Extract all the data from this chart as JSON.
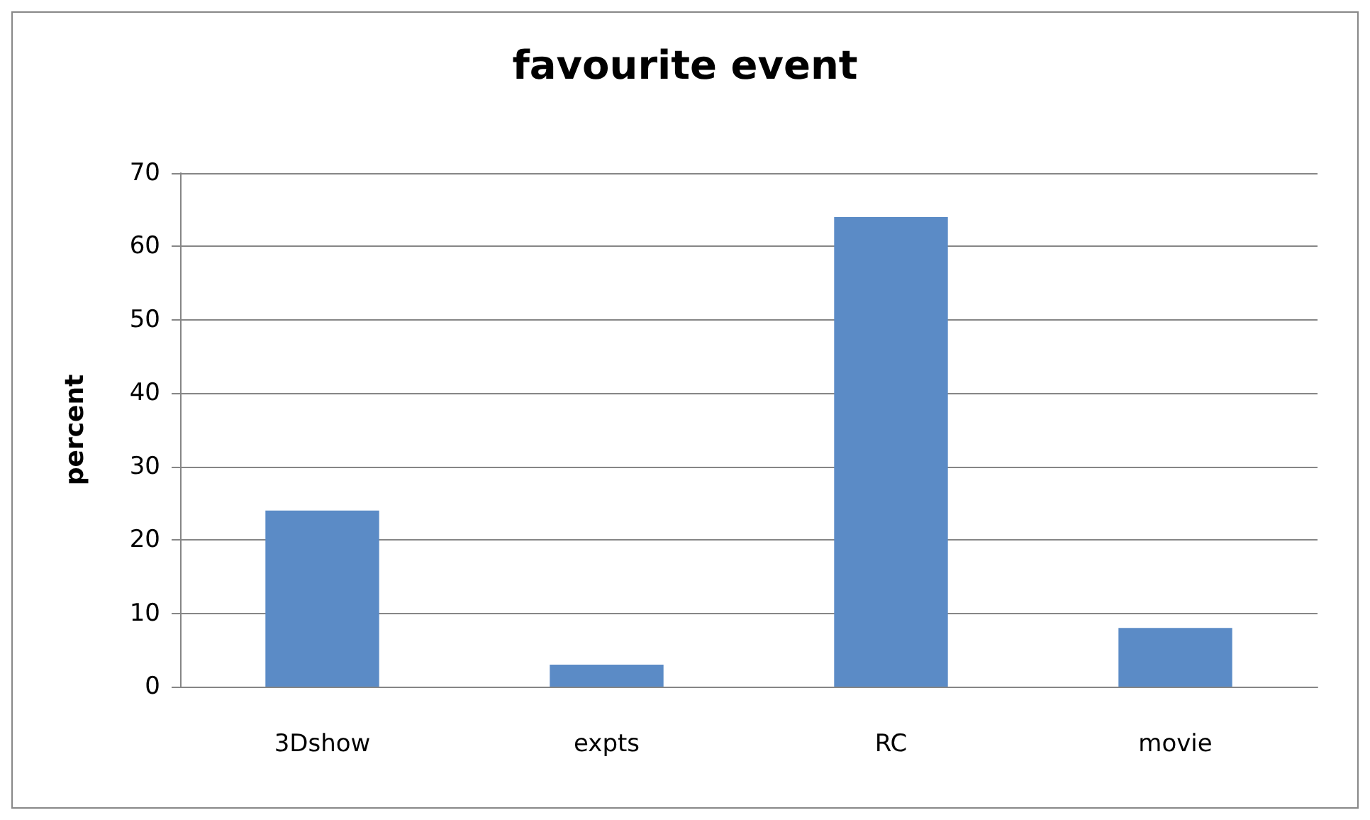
{
  "chart_data": {
    "type": "bar",
    "title": "favourite event",
    "ylabel": "percent",
    "categories": [
      "3Dshow",
      "expts",
      "RC",
      "movie"
    ],
    "values": [
      24,
      3,
      64,
      8
    ],
    "color": "#5b8bc6",
    "ylim": [
      0,
      70
    ],
    "yticks": [
      0,
      10,
      20,
      30,
      40,
      50,
      60,
      70
    ],
    "grid": "y"
  }
}
